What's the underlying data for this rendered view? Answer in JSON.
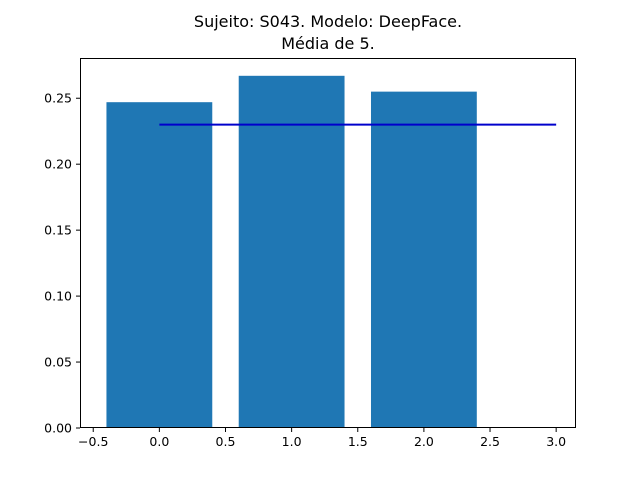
{
  "chart_data": {
    "type": "bar",
    "title_line1": "Sujeito: S043. Modelo: DeepFace.",
    "title_line2": "Média de 5.",
    "bars": [
      {
        "x": 0,
        "value": 0.247
      },
      {
        "x": 1,
        "value": 0.267
      },
      {
        "x": 2,
        "value": 0.255
      }
    ],
    "bar_width": 0.8,
    "bar_color": "#1f77b4",
    "reference_line": {
      "x_start": 0.0,
      "x_end": 3.0,
      "y": 0.23,
      "color": "#0000cc"
    },
    "xlim": [
      -0.6,
      3.15
    ],
    "ylim": [
      0.0,
      0.2805
    ],
    "x_ticks": [
      -0.5,
      0.0,
      0.5,
      1.0,
      1.5,
      2.0,
      2.5,
      3.0
    ],
    "x_tick_labels": [
      "−0.5",
      "0.0",
      "0.5",
      "1.0",
      "1.5",
      "2.0",
      "2.5",
      "3.0"
    ],
    "y_ticks": [
      0.0,
      0.05,
      0.1,
      0.15,
      0.2,
      0.25
    ],
    "y_tick_labels": [
      "0.00",
      "0.05",
      "0.10",
      "0.15",
      "0.20",
      "0.25"
    ],
    "xlabel": "",
    "ylabel": "",
    "grid": false
  }
}
